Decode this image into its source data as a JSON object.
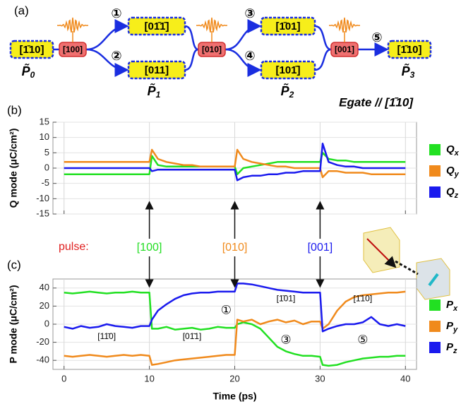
{
  "diagram": {
    "panel_labels": [
      "(a)",
      "(b)",
      "(c)"
    ],
    "nodes": [
      {
        "label": "[1̄10]"
      },
      {
        "label": "[100]"
      },
      {
        "label": "[01̄1̄]"
      },
      {
        "label": "[011]"
      },
      {
        "label": "[010]"
      },
      {
        "label": "[1̄01]"
      },
      {
        "label": "[101̄]"
      },
      {
        "label": "[001]"
      },
      {
        "label": "[1̄10]"
      }
    ],
    "steps": [
      "①",
      "②",
      "③",
      "④",
      "⑤"
    ],
    "states": [
      "P̃0",
      "P̃1",
      "P̃2",
      "P̃3"
    ],
    "field": "Egate // [1̄10]"
  },
  "pulse_label": "pulse:",
  "pulses": [
    {
      "label": "[100]",
      "color": "#22dd22",
      "x": 10
    },
    {
      "label": "[010]",
      "color": "#f08a1c",
      "x": 20
    },
    {
      "label": "[001]",
      "color": "#1a1aee",
      "x": 30
    }
  ],
  "chart_data": [
    {
      "type": "line",
      "ylabel": "Q mode (μC/cm²)",
      "xlim": [
        -1.3,
        41.3
      ],
      "xticks": [
        0,
        10,
        20,
        30,
        40
      ],
      "ylim": [
        -15,
        15
      ],
      "yticks": [
        -15,
        -10,
        -5,
        0,
        5,
        10,
        15
      ],
      "grid": true,
      "x": [
        0,
        1,
        2,
        3,
        4,
        5,
        6,
        7,
        8,
        9,
        10,
        10.3,
        11,
        12,
        13,
        14,
        15,
        16,
        17,
        18,
        19,
        20,
        20.3,
        21,
        22,
        23,
        24,
        25,
        26,
        27,
        28,
        29,
        30,
        30.3,
        31,
        32,
        33,
        34,
        35,
        36,
        37,
        38,
        39,
        40
      ],
      "series": [
        {
          "name": "Qx",
          "color": "#22e022",
          "values": [
            -2,
            -2,
            -2,
            -2,
            -2,
            -2,
            -2,
            -2,
            -2,
            -2,
            -2,
            4,
            1,
            0.5,
            0.5,
            0.5,
            0.5,
            0.5,
            0.5,
            0.5,
            0.5,
            0.5,
            -2,
            0,
            0.5,
            1,
            1.5,
            2,
            2,
            2,
            2,
            2,
            2,
            5,
            3,
            2.5,
            2.5,
            2,
            2,
            2,
            2,
            2,
            2,
            2
          ]
        },
        {
          "name": "Qy",
          "color": "#f08a1c",
          "values": [
            2,
            2,
            2,
            2,
            2,
            2,
            2,
            2,
            2,
            2,
            2,
            6,
            3,
            2,
            1.5,
            1,
            1,
            0.5,
            0.5,
            0.5,
            0.5,
            0.5,
            6,
            3,
            2,
            1.5,
            1,
            0.5,
            0.5,
            0,
            0,
            0,
            0,
            -3,
            -1,
            -1,
            -1.5,
            -1.5,
            -1.5,
            -2,
            -2,
            -2,
            -2,
            -2
          ]
        },
        {
          "name": "Qz",
          "color": "#1a1aee",
          "values": [
            0,
            0,
            0,
            0,
            0,
            0,
            0,
            0,
            0,
            0,
            0,
            -1,
            -0.5,
            -0.5,
            -0.5,
            -0.5,
            -0.5,
            -0.5,
            -0.5,
            -0.5,
            -0.5,
            -0.5,
            -4,
            -3,
            -2.5,
            -2.5,
            -2,
            -2,
            -1.5,
            -1.5,
            -1,
            -1,
            -1,
            8,
            2,
            1,
            0.5,
            0.5,
            0,
            0,
            0,
            0,
            0,
            0
          ]
        }
      ]
    },
    {
      "type": "line",
      "xlabel": "Time (ps)",
      "ylabel": "P mode (μC/cm²)",
      "xlim": [
        -1.3,
        41.3
      ],
      "xticks": [
        0,
        10,
        20,
        30,
        40
      ],
      "ylim": [
        -50,
        50
      ],
      "yticks": [
        -40,
        -20,
        0,
        20,
        40
      ],
      "grid": true,
      "x": [
        0,
        1,
        2,
        3,
        4,
        5,
        6,
        7,
        8,
        9,
        10,
        10.3,
        11,
        12,
        13,
        14,
        15,
        16,
        17,
        18,
        19,
        20,
        20.3,
        21,
        22,
        23,
        24,
        25,
        26,
        27,
        28,
        29,
        30,
        30.3,
        31,
        32,
        33,
        34,
        35,
        36,
        37,
        38,
        39,
        40
      ],
      "series": [
        {
          "name": "Px",
          "color": "#22e022",
          "values": [
            35,
            34,
            35,
            36,
            35,
            34,
            35,
            35,
            36,
            35,
            35,
            -5,
            -5,
            -3,
            -6,
            -5,
            -4,
            -6,
            -5,
            -3,
            -4,
            -4,
            0,
            2,
            0,
            -5,
            -15,
            -25,
            -30,
            -33,
            -35,
            -35,
            -36,
            -45,
            -46,
            -45,
            -42,
            -40,
            -38,
            -37,
            -36,
            -36,
            -35,
            -35
          ]
        },
        {
          "name": "Py",
          "color": "#f08a1c",
          "values": [
            -35,
            -36,
            -35,
            -34,
            -35,
            -36,
            -35,
            -34,
            -35,
            -34,
            -35,
            -45,
            -44,
            -42,
            -40,
            -39,
            -38,
            -37,
            -36,
            -35,
            -34,
            -34,
            5,
            3,
            5,
            0,
            3,
            5,
            2,
            4,
            0,
            3,
            3,
            -5,
            0,
            15,
            25,
            30,
            32,
            33,
            34,
            35,
            35,
            36
          ]
        },
        {
          "name": "Pz",
          "color": "#1a1aee",
          "values": [
            -3,
            -5,
            -2,
            -4,
            -3,
            0,
            -2,
            -3,
            -4,
            -2,
            -2,
            5,
            15,
            22,
            28,
            32,
            34,
            35,
            35,
            36,
            36,
            36,
            45,
            45,
            44,
            42,
            40,
            38,
            37,
            36,
            35,
            35,
            35,
            -8,
            -5,
            -2,
            0,
            0,
            2,
            8,
            0,
            -2,
            0,
            -2
          ]
        }
      ],
      "annotations": [
        "①",
        "[1̄01]",
        "[1̄10]",
        "[11̄0]",
        "[01̄1]",
        "③",
        "⑤"
      ]
    }
  ]
}
